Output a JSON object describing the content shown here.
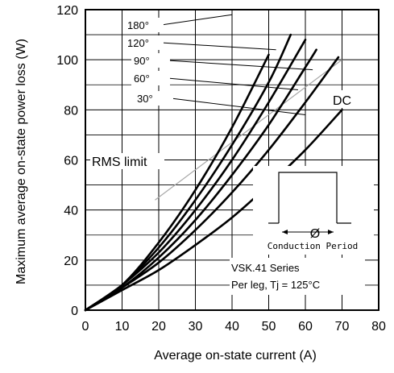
{
  "chart_data": {
    "type": "line",
    "xlabel": "Average on-state current (A)",
    "ylabel": "Maximum average on-state power loss (W)",
    "xlim": [
      0,
      80
    ],
    "ylim": [
      0,
      120
    ],
    "xticks": [
      0,
      10,
      20,
      30,
      40,
      50,
      60,
      70,
      80
    ],
    "yticks": [
      0,
      20,
      40,
      60,
      80,
      100,
      120
    ],
    "grid": true,
    "series": [
      {
        "name": "180°",
        "x": [
          0,
          10,
          20,
          30,
          40,
          50
        ],
        "y": [
          0,
          10,
          27,
          48,
          73,
          102
        ]
      },
      {
        "name": "120°",
        "x": [
          0,
          10,
          20,
          30,
          40,
          50,
          56
        ],
        "y": [
          0,
          10,
          25,
          44,
          66,
          91,
          110
        ]
      },
      {
        "name": "90°",
        "x": [
          0,
          10,
          20,
          30,
          40,
          50,
          60
        ],
        "y": [
          0,
          10,
          23,
          40,
          60,
          83,
          108
        ]
      },
      {
        "name": "60°",
        "x": [
          0,
          10,
          20,
          30,
          40,
          50,
          60,
          63
        ],
        "y": [
          0,
          9,
          21,
          36,
          54,
          74,
          97,
          104
        ]
      },
      {
        "name": "30°",
        "x": [
          0,
          10,
          20,
          30,
          40,
          50,
          60,
          69
        ],
        "y": [
          0,
          9,
          19,
          32,
          47,
          64,
          83,
          101
        ]
      },
      {
        "name": "DC",
        "x": [
          0,
          10,
          20,
          30,
          40,
          50,
          60,
          70
        ],
        "y": [
          0,
          8,
          16,
          26,
          37,
          50,
          64,
          80
        ]
      }
    ],
    "rms_limit": {
      "label": "RMS limit",
      "x": [
        19,
        70
      ],
      "y": [
        44,
        100
      ]
    },
    "annotations": {
      "series_labels": [
        "180°",
        "120°",
        "90°",
        "60°",
        "30°"
      ],
      "dc_label": "DC",
      "inset_caption": "Conduction Period",
      "inset_symbol": "Ø",
      "series_note_line1": "VSK.41 Series",
      "series_note_line2": "Per leg, Tj = 125°C"
    }
  }
}
